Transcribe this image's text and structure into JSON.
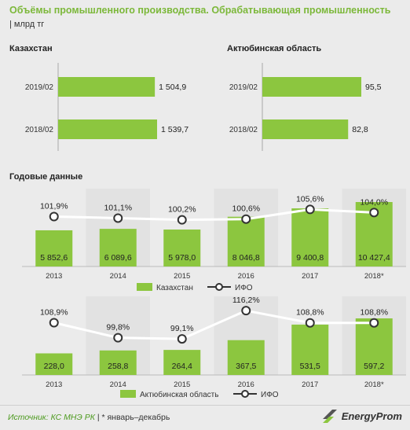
{
  "header": {
    "title": "Объёмы промышленного производства. Обрабатывающая промышленность",
    "unit": "| млрд тг"
  },
  "section_labels": {
    "kz": "Казахстан",
    "aktobe": "Актюбинская  область",
    "annual": "Годовые данные"
  },
  "chart_data": [
    {
      "type": "bar",
      "orientation": "horizontal",
      "title": "Казахстан",
      "categories": [
        "2019/02",
        "2018/02"
      ],
      "values": [
        1504.9,
        1539.7
      ],
      "value_labels": [
        "1 504,9",
        "1 539,7"
      ],
      "color": "#8cc63f"
    },
    {
      "type": "bar",
      "orientation": "horizontal",
      "title": "Актюбинская  область",
      "categories": [
        "2019/02",
        "2018/02"
      ],
      "values": [
        95.5,
        82.8
      ],
      "value_labels": [
        "95,5",
        "82,8"
      ],
      "color": "#8cc63f"
    },
    {
      "type": "bar",
      "title": "Годовые данные",
      "categories": [
        "2013",
        "2014",
        "2015",
        "2016",
        "2017",
        "2018*"
      ],
      "series": [
        {
          "name": "Казахстан",
          "kind": "bar",
          "values": [
            5852.6,
            6089.6,
            5978.0,
            8046.8,
            9400.8,
            10427.4
          ],
          "value_labels": [
            "5 852,6",
            "6 089,6",
            "5 978,0",
            "8 046,8",
            "9 400,8",
            "10 427,4"
          ],
          "color": "#8cc63f"
        },
        {
          "name": "ИФО",
          "kind": "line",
          "values": [
            101.9,
            101.1,
            100.2,
            100.6,
            105.6,
            104.0
          ],
          "value_labels": [
            "101,9%",
            "101,1%",
            "100,2%",
            "100,6%",
            "105,6%",
            "104,0%"
          ],
          "color": "#ffffff"
        }
      ],
      "legend": "bottom"
    },
    {
      "type": "bar",
      "categories": [
        "2013",
        "2014",
        "2015",
        "2016",
        "2017",
        "2018*"
      ],
      "series": [
        {
          "name": "Актюбинская область",
          "kind": "bar",
          "values": [
            228.0,
            258.8,
            264.4,
            367.5,
            531.5,
            597.2
          ],
          "value_labels": [
            "228,0",
            "258,8",
            "264,4",
            "367,5",
            "531,5",
            "597,2"
          ],
          "color": "#8cc63f"
        },
        {
          "name": "ИФО",
          "kind": "line",
          "values": [
            108.9,
            99.8,
            99.1,
            116.2,
            108.8,
            108.8
          ],
          "value_labels": [
            "108,9%",
            "99,8%",
            "99,1%",
            "116,2%",
            "108,8%",
            "108,8%"
          ],
          "color": "#ffffff"
        }
      ],
      "legend": "bottom"
    }
  ],
  "footer": {
    "source": "Источник: КС МНЭ РК",
    "note": "| * январь–декабрь",
    "logo": "EnergyProm"
  },
  "colors": {
    "bar": "#8cc63f",
    "title": "#7cb83a",
    "background": "#ebebeb",
    "stripe": "#e0e0e0"
  }
}
